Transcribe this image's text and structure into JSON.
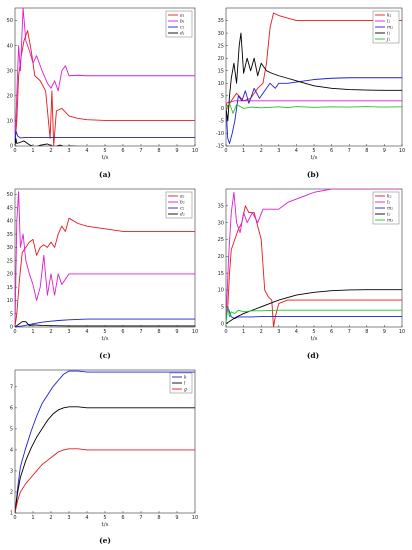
{
  "chart_data": [
    {
      "panel": "(a)",
      "type": "line",
      "xlabel": "t/s",
      "xlim": [
        0,
        10
      ],
      "ylim": [
        0,
        55
      ],
      "xticks": [
        0,
        1,
        2,
        3,
        4,
        5,
        6,
        7,
        8,
        9,
        10
      ],
      "yticks": [
        0,
        10,
        20,
        30,
        40,
        50
      ],
      "legend_position": "top-right",
      "series": [
        {
          "name": "a₁",
          "color": "#e41a1c",
          "x": [
            0,
            0.1,
            0.2,
            0.35,
            0.5,
            0.7,
            0.9,
            1.1,
            1.4,
            1.7,
            1.95,
            2.05,
            2.15,
            2.3,
            2.6,
            3,
            3.5,
            4,
            5,
            6,
            7,
            8,
            9,
            10
          ],
          "y": [
            1,
            10,
            28,
            36,
            42,
            46,
            38,
            28,
            26,
            22,
            3,
            22,
            0,
            14,
            15,
            12,
            11,
            10.5,
            10.2,
            10.2,
            10.2,
            10.2,
            10.2,
            10.2
          ]
        },
        {
          "name": "b₁",
          "color": "#e01ccf",
          "x": [
            0,
            0.1,
            0.2,
            0.3,
            0.45,
            0.6,
            0.8,
            1,
            1.2,
            1.5,
            1.8,
            2,
            2.2,
            2.4,
            2.6,
            2.8,
            3,
            3.5,
            4,
            5,
            6,
            7,
            8,
            9,
            10
          ],
          "y": [
            1,
            20,
            40,
            30,
            55,
            42,
            38,
            33,
            36,
            30,
            25,
            23,
            26,
            22,
            30,
            32,
            28,
            28.2,
            28,
            28,
            28,
            28,
            28,
            28,
            28
          ]
        },
        {
          "name": "c₁",
          "color": "#1f1fd6",
          "x": [
            0,
            0.05,
            0.15,
            0.3,
            0.6,
            1,
            2,
            3,
            4,
            6,
            8,
            10
          ],
          "y": [
            1,
            6,
            4,
            3.2,
            3.4,
            3.4,
            3.4,
            3.4,
            3.4,
            3.4,
            3.4,
            3.4
          ]
        },
        {
          "name": "d₁",
          "color": "#000000",
          "x": [
            0,
            0.05,
            0.1,
            0.3,
            0.5,
            0.8,
            1.1,
            1.4,
            1.8,
            2.2,
            2.5,
            2.8,
            3,
            4,
            6,
            8,
            10
          ],
          "y": [
            0,
            3,
            1,
            1.5,
            2,
            0.5,
            -0.5,
            0.3,
            0.8,
            -0.4,
            0.4,
            -0.5,
            0,
            -0.3,
            -0.3,
            -0.3,
            -0.3
          ]
        }
      ]
    },
    {
      "panel": "(b)",
      "type": "line",
      "xlabel": "t/s",
      "xlim": [
        0,
        10
      ],
      "ylim": [
        -15,
        40
      ],
      "xticks": [
        0,
        1,
        2,
        3,
        4,
        5,
        6,
        7,
        8,
        9,
        10
      ],
      "yticks": [
        -15,
        -10,
        -5,
        0,
        5,
        10,
        15,
        20,
        25,
        30,
        35
      ],
      "legend_position": "top-right",
      "series": [
        {
          "name": "k₁",
          "color": "#e41a1c",
          "x": [
            0,
            0.1,
            0.3,
            0.6,
            1,
            1.4,
            1.8,
            2.1,
            2.3,
            2.5,
            2.7,
            3,
            3.5,
            4,
            5,
            6,
            7,
            8,
            9,
            10
          ],
          "y": [
            2,
            0.5,
            3,
            6,
            3,
            4,
            8,
            10,
            18,
            32,
            38,
            37,
            36,
            35,
            35,
            35,
            35,
            35,
            35,
            35
          ]
        },
        {
          "name": "l₁",
          "color": "#e01ccf",
          "x": [
            0,
            0.2,
            0.5,
            1,
            2,
            3,
            4,
            6,
            8,
            10
          ],
          "y": [
            2,
            2.5,
            3,
            3,
            3,
            3,
            3,
            3,
            3,
            3
          ]
        },
        {
          "name": "m₁",
          "color": "#1f1fd6",
          "x": [
            0,
            0.1,
            0.2,
            0.35,
            0.5,
            0.7,
            0.9,
            1.1,
            1.3,
            1.6,
            1.9,
            2.2,
            2.5,
            2.8,
            3,
            3.5,
            4,
            5,
            6,
            7,
            8,
            9,
            10
          ],
          "y": [
            0,
            -12,
            -14,
            -10,
            -5,
            5,
            3,
            7,
            2,
            8,
            4,
            7,
            10,
            8,
            10,
            10,
            10.5,
            11.5,
            12,
            12.2,
            12.2,
            12.2,
            12.2
          ]
        },
        {
          "name": "i₁",
          "color": "#000000",
          "x": [
            0,
            0.1,
            0.2,
            0.3,
            0.45,
            0.6,
            0.75,
            0.85,
            1,
            1.2,
            1.4,
            1.6,
            1.8,
            2,
            2.3,
            2.6,
            3,
            3.5,
            4,
            5,
            6,
            7,
            8,
            9,
            10
          ],
          "y": [
            0,
            -5,
            5,
            12,
            18,
            10,
            25,
            30,
            14,
            20,
            15,
            20,
            13,
            18,
            15,
            14,
            13,
            12,
            11,
            9,
            8,
            7.5,
            7.3,
            7.2,
            7.2
          ]
        },
        {
          "name": "j₁",
          "color": "#22c322",
          "x": [
            0,
            0.2,
            0.4,
            0.6,
            1,
            1.5,
            2,
            2.5,
            3,
            3.5,
            4,
            5,
            6,
            7,
            8,
            9,
            10
          ],
          "y": [
            0,
            2,
            -2,
            1.5,
            0,
            0.5,
            0.2,
            0.4,
            0.6,
            0.3,
            0.7,
            0.4,
            0.6,
            0.5,
            0.7,
            0.5,
            0.6
          ]
        }
      ]
    },
    {
      "panel": "(c)",
      "type": "line",
      "xlabel": "t/s",
      "xlim": [
        0,
        10
      ],
      "ylim": [
        0,
        52
      ],
      "xticks": [
        0,
        1,
        2,
        3,
        4,
        5,
        6,
        7,
        8,
        9,
        10
      ],
      "yticks": [
        0,
        5,
        10,
        15,
        20,
        25,
        30,
        35,
        40,
        45,
        50
      ],
      "legend_position": "top-right",
      "series": [
        {
          "name": "a₂",
          "color": "#e41a1c",
          "x": [
            0,
            0.1,
            0.25,
            0.4,
            0.6,
            0.8,
            1,
            1.2,
            1.4,
            1.6,
            1.8,
            2,
            2.2,
            2.4,
            2.6,
            2.8,
            3,
            3.5,
            4,
            5,
            6,
            7,
            8,
            9,
            10
          ],
          "y": [
            0,
            5,
            18,
            28,
            30,
            32,
            33,
            27,
            30,
            31,
            30,
            32,
            30,
            35,
            38,
            36,
            41,
            39,
            38,
            37,
            36,
            36,
            36,
            36,
            36
          ]
        },
        {
          "name": "b₂",
          "color": "#e01ccf",
          "x": [
            0,
            0.1,
            0.2,
            0.3,
            0.45,
            0.6,
            0.8,
            1,
            1.2,
            1.4,
            1.6,
            1.8,
            2,
            2.2,
            2.4,
            2.6,
            2.8,
            3,
            3.5,
            4,
            6,
            8,
            10
          ],
          "y": [
            0,
            40,
            51,
            30,
            35,
            25,
            20,
            16,
            10,
            15,
            27,
            12,
            20,
            12,
            20,
            16,
            18,
            20,
            20,
            20,
            20,
            20,
            20
          ]
        },
        {
          "name": "c₂",
          "color": "#1f1fd6",
          "x": [
            0,
            0.5,
            1,
            1.5,
            2,
            2.5,
            3,
            4,
            6,
            8,
            10
          ],
          "y": [
            0,
            0.5,
            1.2,
            1.8,
            2.2,
            2.5,
            2.7,
            3,
            3,
            3,
            3
          ]
        },
        {
          "name": "d₂",
          "color": "#000000",
          "x": [
            0,
            0.2,
            0.4,
            0.6,
            0.8,
            1,
            1.5,
            2,
            3,
            4,
            6,
            8,
            10
          ],
          "y": [
            0,
            1,
            2,
            2,
            0.5,
            0.8,
            0.6,
            0.5,
            0.4,
            0.4,
            0.4,
            0.4,
            0.4
          ]
        }
      ]
    },
    {
      "panel": "(d)",
      "type": "line",
      "xlabel": "t/s",
      "xlim": [
        0,
        10
      ],
      "ylim": [
        -1,
        40
      ],
      "xticks": [
        0,
        1,
        2,
        3,
        4,
        5,
        6,
        7,
        8,
        9,
        10
      ],
      "yticks": [
        0,
        5,
        10,
        15,
        20,
        25,
        30,
        35
      ],
      "legend_position": "top-right",
      "series": [
        {
          "name": "k₂",
          "color": "#e41a1c",
          "x": [
            0,
            0.1,
            0.2,
            0.3,
            0.5,
            0.7,
            0.9,
            1.1,
            1.3,
            1.6,
            2,
            2.2,
            2.4,
            2.6,
            2.7,
            2.8,
            3,
            3.5,
            4,
            5,
            6,
            7,
            8,
            9,
            10
          ],
          "y": [
            1,
            5,
            15,
            22,
            25,
            28,
            30,
            35,
            33,
            33,
            25,
            10,
            8,
            7,
            -1,
            2,
            6,
            7,
            7,
            7,
            7,
            7,
            7,
            7,
            7
          ]
        },
        {
          "name": "l₂",
          "color": "#e01ccf",
          "x": [
            0,
            0.15,
            0.3,
            0.45,
            0.6,
            0.8,
            1,
            1.2,
            1.5,
            1.8,
            2.1,
            2.5,
            3,
            3.5,
            4,
            4.5,
            5,
            6,
            7,
            8,
            9,
            10
          ],
          "y": [
            1,
            20,
            33,
            39,
            30,
            27,
            33,
            30,
            33,
            30,
            34,
            34,
            34,
            36,
            37,
            38,
            39,
            40,
            40,
            40,
            40,
            40
          ]
        },
        {
          "name": "m₂",
          "color": "#1f1fd6",
          "x": [
            0,
            0.1,
            0.3,
            0.5,
            0.7,
            1,
            1.5,
            2,
            3,
            4,
            6,
            8,
            10
          ],
          "y": [
            1,
            5,
            2,
            1.5,
            2,
            2,
            2,
            2.1,
            2.1,
            2.1,
            2.1,
            2.1,
            2.1
          ]
        },
        {
          "name": "i₂",
          "color": "#000000",
          "x": [
            0,
            0.3,
            0.6,
            1,
            1.5,
            2,
            2.5,
            3,
            4,
            5,
            6,
            7,
            8,
            9,
            10
          ],
          "y": [
            0,
            1,
            2,
            3,
            4,
            5,
            6,
            7,
            8.5,
            9.3,
            9.8,
            10,
            10.1,
            10.1,
            10.1
          ]
        },
        {
          "name": "m₃",
          "color": "#22c322",
          "x": [
            0,
            0.1,
            0.2,
            0.3,
            0.5,
            0.7,
            1,
            1.5,
            2,
            3,
            4,
            6,
            8,
            10
          ],
          "y": [
            0,
            5,
            2,
            3.5,
            3,
            4,
            3.5,
            3.8,
            3.8,
            4,
            4,
            4,
            4,
            4
          ]
        }
      ]
    },
    {
      "panel": "(e)",
      "type": "line",
      "xlabel": "t/s",
      "xlim": [
        0,
        10
      ],
      "ylim": [
        1,
        7.8
      ],
      "xticks": [
        0,
        1,
        2,
        3,
        4,
        5,
        6,
        7,
        8,
        9,
        10
      ],
      "yticks": [
        1,
        2,
        3,
        4,
        5,
        6,
        7
      ],
      "legend_position": "top-right",
      "series": [
        {
          "name": "k",
          "color": "#1f1fd6",
          "x": [
            0,
            0.15,
            0.3,
            0.6,
            0.9,
            1.2,
            1.5,
            1.8,
            2.1,
            2.4,
            2.7,
            3,
            3.5,
            4,
            5,
            6,
            7,
            8,
            9,
            10
          ],
          "y": [
            1,
            2.2,
            3.2,
            4.1,
            4.9,
            5.6,
            6.2,
            6.6,
            7.0,
            7.3,
            7.6,
            7.75,
            7.75,
            7.7,
            7.7,
            7.7,
            7.7,
            7.7,
            7.7,
            7.7
          ]
        },
        {
          "name": "l",
          "color": "#000000",
          "x": [
            0,
            0.15,
            0.3,
            0.6,
            0.9,
            1.2,
            1.5,
            1.8,
            2.1,
            2.4,
            2.7,
            3,
            3.5,
            4,
            5,
            6,
            7,
            8,
            9,
            10
          ],
          "y": [
            1,
            2,
            2.7,
            3.5,
            4.1,
            4.6,
            5.0,
            5.4,
            5.7,
            5.9,
            6.0,
            6.05,
            6.05,
            6.0,
            6.0,
            6.0,
            6.0,
            6.0,
            6.0,
            6.0
          ]
        },
        {
          "name": "g",
          "color": "#e41a1c",
          "x": [
            0,
            0.15,
            0.3,
            0.6,
            0.9,
            1.2,
            1.5,
            1.8,
            2.1,
            2.4,
            2.7,
            3,
            3.5,
            4,
            5,
            6,
            7,
            8,
            9,
            10
          ],
          "y": [
            1,
            1.6,
            2.0,
            2.4,
            2.7,
            3.0,
            3.3,
            3.5,
            3.7,
            3.9,
            4.0,
            4.05,
            4.05,
            4.0,
            4.0,
            4.0,
            4.0,
            4.0,
            4.0,
            4.0
          ]
        }
      ]
    }
  ]
}
